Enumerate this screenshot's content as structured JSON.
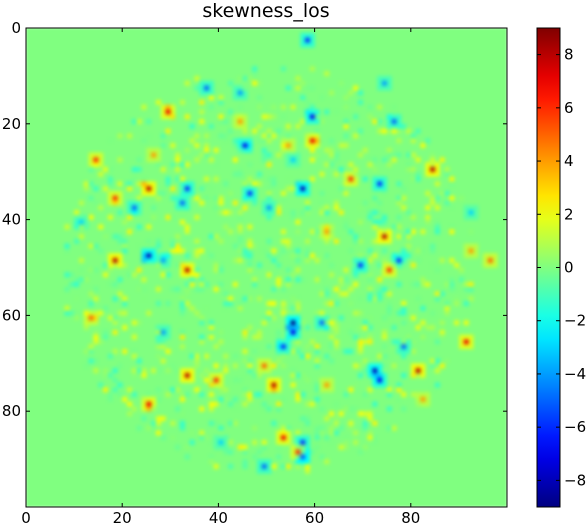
{
  "chart_data": {
    "type": "heatmap",
    "title": "skewness_los",
    "xlabel": "",
    "ylabel": "",
    "grid_size": [
      100,
      100
    ],
    "x_range": [
      0,
      100
    ],
    "y_range": [
      0,
      100
    ],
    "x_ticks": [
      0,
      20,
      40,
      60,
      80
    ],
    "y_ticks": [
      0,
      20,
      40,
      60,
      80
    ],
    "y_axis_inverted": true,
    "background_value": 0,
    "nonzero_region": {
      "shape": "disk",
      "center": [
        50,
        50
      ],
      "radius": 43
    },
    "colorbar": {
      "colormap": "jet",
      "range": [
        -9,
        9
      ],
      "ticks": [
        8,
        6,
        4,
        2,
        0,
        -2,
        -4,
        -6,
        -8
      ]
    },
    "colorbar_tick_labels": [
      "8",
      "6",
      "4",
      "2",
      "0",
      "−2",
      "−4",
      "−6",
      "−8"
    ],
    "hotspots": [
      {
        "x": 58,
        "y": 2,
        "value": -6
      },
      {
        "x": 37,
        "y": 12,
        "value": -5
      },
      {
        "x": 44,
        "y": 13,
        "value": -4
      },
      {
        "x": 74,
        "y": 11,
        "value": -4
      },
      {
        "x": 29,
        "y": 17,
        "value": 7
      },
      {
        "x": 59,
        "y": 18,
        "value": -7
      },
      {
        "x": 76,
        "y": 19,
        "value": -5
      },
      {
        "x": 44,
        "y": 19,
        "value": 4
      },
      {
        "x": 45,
        "y": 24,
        "value": -7
      },
      {
        "x": 59,
        "y": 23,
        "value": 7
      },
      {
        "x": 54,
        "y": 24,
        "value": 4
      },
      {
        "x": 14,
        "y": 27,
        "value": 6
      },
      {
        "x": 26,
        "y": 26,
        "value": 4
      },
      {
        "x": 55,
        "y": 27,
        "value": -3
      },
      {
        "x": 84,
        "y": 29,
        "value": 8
      },
      {
        "x": 67,
        "y": 31,
        "value": 6
      },
      {
        "x": 25,
        "y": 33,
        "value": 8
      },
      {
        "x": 33,
        "y": 33,
        "value": -6
      },
      {
        "x": 46,
        "y": 34,
        "value": -6
      },
      {
        "x": 57,
        "y": 33,
        "value": -8
      },
      {
        "x": 73,
        "y": 32,
        "value": -6
      },
      {
        "x": 18,
        "y": 35,
        "value": 6
      },
      {
        "x": 22,
        "y": 37,
        "value": -5
      },
      {
        "x": 32,
        "y": 36,
        "value": -5
      },
      {
        "x": 50,
        "y": 37,
        "value": -4
      },
      {
        "x": 92,
        "y": 38,
        "value": -3
      },
      {
        "x": 74,
        "y": 43,
        "value": 8
      },
      {
        "x": 62,
        "y": 42,
        "value": 4
      },
      {
        "x": 11,
        "y": 40,
        "value": -3
      },
      {
        "x": 25,
        "y": 47,
        "value": -8
      },
      {
        "x": 18,
        "y": 48,
        "value": 8
      },
      {
        "x": 33,
        "y": 50,
        "value": 8
      },
      {
        "x": 28,
        "y": 48,
        "value": -4
      },
      {
        "x": 69,
        "y": 49,
        "value": -6
      },
      {
        "x": 77,
        "y": 48,
        "value": -6
      },
      {
        "x": 75,
        "y": 50,
        "value": 6
      },
      {
        "x": 92,
        "y": 46,
        "value": 4
      },
      {
        "x": 96,
        "y": 48,
        "value": 5
      },
      {
        "x": 13,
        "y": 60,
        "value": 5
      },
      {
        "x": 55,
        "y": 61,
        "value": -9
      },
      {
        "x": 55,
        "y": 63,
        "value": -7
      },
      {
        "x": 61,
        "y": 61,
        "value": -5
      },
      {
        "x": 28,
        "y": 63,
        "value": -4
      },
      {
        "x": 91,
        "y": 65,
        "value": 7
      },
      {
        "x": 53,
        "y": 66,
        "value": -6
      },
      {
        "x": 78,
        "y": 66,
        "value": -5
      },
      {
        "x": 49,
        "y": 70,
        "value": 5
      },
      {
        "x": 72,
        "y": 71,
        "value": -8
      },
      {
        "x": 73,
        "y": 73,
        "value": -7
      },
      {
        "x": 81,
        "y": 71,
        "value": 8
      },
      {
        "x": 33,
        "y": 72,
        "value": 8
      },
      {
        "x": 39,
        "y": 73,
        "value": 6
      },
      {
        "x": 51,
        "y": 74,
        "value": 8
      },
      {
        "x": 62,
        "y": 74,
        "value": 4
      },
      {
        "x": 25,
        "y": 78,
        "value": 7
      },
      {
        "x": 82,
        "y": 77,
        "value": 4
      },
      {
        "x": 53,
        "y": 85,
        "value": 7
      },
      {
        "x": 57,
        "y": 86,
        "value": -6
      },
      {
        "x": 49,
        "y": 91,
        "value": -5
      },
      {
        "x": 57,
        "y": 89,
        "value": -9
      },
      {
        "x": 56,
        "y": 88,
        "value": 6
      },
      {
        "x": 40,
        "y": 86,
        "value": -3
      }
    ]
  }
}
